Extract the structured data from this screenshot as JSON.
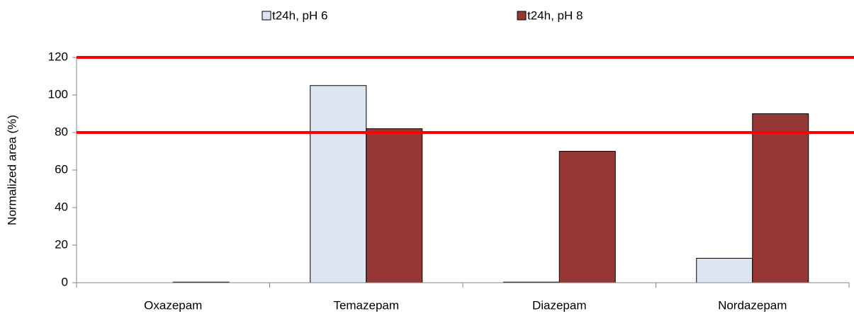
{
  "chart_data": {
    "type": "bar",
    "y_label": "Normalized area (%)",
    "categories": [
      "Oxazepam",
      "Temazepam",
      "Diazepam",
      "Nordazepam"
    ],
    "series": [
      {
        "name": "t24h, pH 6",
        "color": "#dce6f2",
        "values": [
          0,
          105,
          0.3,
          13
        ]
      },
      {
        "name": "t24h, pH 8",
        "color": "#953735",
        "values": [
          0.3,
          82,
          70,
          90
        ]
      }
    ],
    "ylim": [
      0,
      120
    ],
    "yticks": [
      0,
      20,
      40,
      60,
      80,
      100,
      120
    ],
    "reference_lines": [
      80,
      120
    ],
    "reference_color": "#ff0000",
    "legend": "top",
    "grid": false
  }
}
